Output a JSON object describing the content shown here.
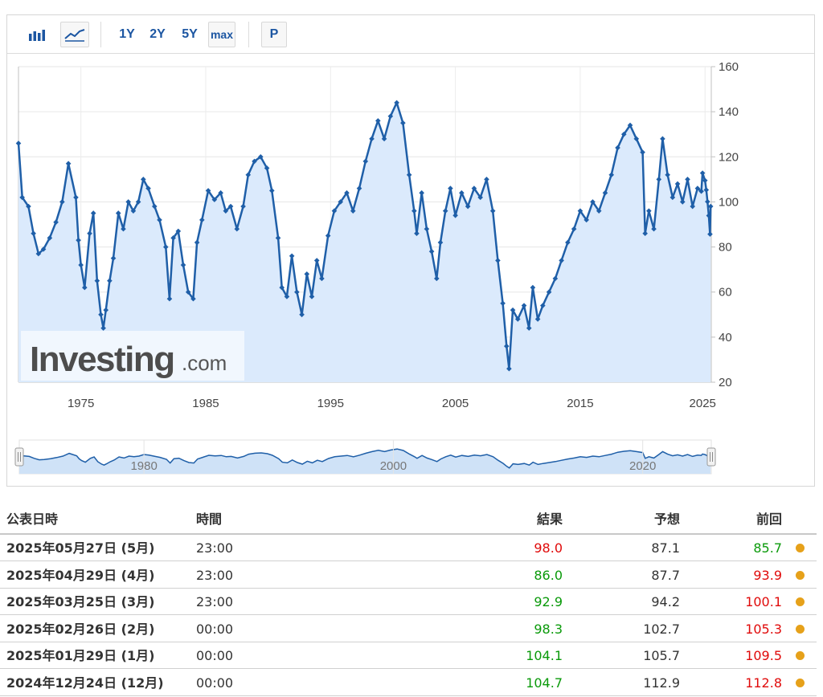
{
  "toolbar": {
    "range_1y": "1Y",
    "range_2y": "2Y",
    "range_5y": "5Y",
    "range_max": "max",
    "p_button": "P"
  },
  "watermark": {
    "brand": "Investing",
    "suffix": ".com"
  },
  "colors": {
    "line": "#1f5fa8",
    "area": "#dbeafc",
    "up": "#e00a0a",
    "down": "#0a9a0a",
    "dot": "#e6a11a"
  },
  "chart_data": {
    "type": "area",
    "title": "",
    "xlabel": "",
    "ylabel": "",
    "xlim": [
      1970.0,
      2025.5
    ],
    "ylim": [
      20,
      160
    ],
    "y_ticks": [
      "20",
      "40",
      "60",
      "80",
      "100",
      "120",
      "140",
      "160"
    ],
    "x_ticks": [
      "1975",
      "1985",
      "1995",
      "2005",
      "2015",
      "2025"
    ],
    "navigator_ticks": [
      "1980",
      "2000",
      "2020"
    ],
    "grid": true,
    "y_axis_side": "right",
    "series": [
      {
        "values": [
          [
            1970.0,
            126
          ],
          [
            1970.3,
            102
          ],
          [
            1970.8,
            98
          ],
          [
            1971.2,
            86
          ],
          [
            1971.6,
            77
          ],
          [
            1972.0,
            79
          ],
          [
            1972.5,
            84
          ],
          [
            1973.0,
            91
          ],
          [
            1973.5,
            100
          ],
          [
            1974.0,
            117
          ],
          [
            1974.6,
            102
          ],
          [
            1974.8,
            83
          ],
          [
            1975.0,
            72
          ],
          [
            1975.3,
            62
          ],
          [
            1975.7,
            86
          ],
          [
            1976.0,
            95
          ],
          [
            1976.3,
            65
          ],
          [
            1976.6,
            50
          ],
          [
            1976.8,
            44
          ],
          [
            1977.0,
            52
          ],
          [
            1977.3,
            65
          ],
          [
            1977.6,
            75
          ],
          [
            1978.0,
            95
          ],
          [
            1978.4,
            88
          ],
          [
            1978.8,
            100
          ],
          [
            1979.2,
            96
          ],
          [
            1979.6,
            100
          ],
          [
            1980.0,
            110
          ],
          [
            1980.4,
            106
          ],
          [
            1980.9,
            98
          ],
          [
            1981.3,
            92
          ],
          [
            1981.8,
            80
          ],
          [
            1982.1,
            57
          ],
          [
            1982.4,
            84
          ],
          [
            1982.8,
            87
          ],
          [
            1983.2,
            72
          ],
          [
            1983.6,
            60
          ],
          [
            1984.0,
            57
          ],
          [
            1984.3,
            82
          ],
          [
            1984.7,
            92
          ],
          [
            1985.2,
            105
          ],
          [
            1985.7,
            101
          ],
          [
            1986.2,
            104
          ],
          [
            1986.6,
            96
          ],
          [
            1987.0,
            98
          ],
          [
            1987.5,
            88
          ],
          [
            1988.0,
            98
          ],
          [
            1988.4,
            112
          ],
          [
            1988.9,
            118
          ],
          [
            1989.4,
            120
          ],
          [
            1989.9,
            115
          ],
          [
            1990.3,
            105
          ],
          [
            1990.8,
            84
          ],
          [
            1991.1,
            62
          ],
          [
            1991.5,
            58
          ],
          [
            1991.9,
            76
          ],
          [
            1992.3,
            60
          ],
          [
            1992.7,
            50
          ],
          [
            1993.1,
            68
          ],
          [
            1993.5,
            58
          ],
          [
            1993.9,
            74
          ],
          [
            1994.3,
            66
          ],
          [
            1994.8,
            85
          ],
          [
            1995.3,
            96
          ],
          [
            1995.8,
            100
          ],
          [
            1996.3,
            104
          ],
          [
            1996.8,
            96
          ],
          [
            1997.3,
            106
          ],
          [
            1997.8,
            118
          ],
          [
            1998.3,
            128
          ],
          [
            1998.8,
            136
          ],
          [
            1999.3,
            128
          ],
          [
            1999.8,
            138
          ],
          [
            2000.3,
            144
          ],
          [
            2000.8,
            135
          ],
          [
            2001.3,
            112
          ],
          [
            2001.7,
            96
          ],
          [
            2001.9,
            86
          ],
          [
            2002.3,
            104
          ],
          [
            2002.7,
            88
          ],
          [
            2003.1,
            78
          ],
          [
            2003.5,
            66
          ],
          [
            2003.8,
            82
          ],
          [
            2004.2,
            96
          ],
          [
            2004.6,
            106
          ],
          [
            2005.0,
            94
          ],
          [
            2005.5,
            104
          ],
          [
            2006.0,
            98
          ],
          [
            2006.5,
            106
          ],
          [
            2007.0,
            102
          ],
          [
            2007.5,
            110
          ],
          [
            2008.0,
            96
          ],
          [
            2008.4,
            74
          ],
          [
            2008.8,
            55
          ],
          [
            2009.1,
            36
          ],
          [
            2009.3,
            26
          ],
          [
            2009.6,
            52
          ],
          [
            2010.0,
            48
          ],
          [
            2010.5,
            54
          ],
          [
            2010.9,
            44
          ],
          [
            2011.2,
            62
          ],
          [
            2011.6,
            48
          ],
          [
            2012.0,
            54
          ],
          [
            2012.5,
            60
          ],
          [
            2013.0,
            66
          ],
          [
            2013.5,
            74
          ],
          [
            2014.0,
            82
          ],
          [
            2014.5,
            88
          ],
          [
            2015.0,
            96
          ],
          [
            2015.5,
            92
          ],
          [
            2016.0,
            100
          ],
          [
            2016.5,
            96
          ],
          [
            2017.0,
            104
          ],
          [
            2017.5,
            112
          ],
          [
            2018.0,
            124
          ],
          [
            2018.5,
            130
          ],
          [
            2019.0,
            134
          ],
          [
            2019.5,
            128
          ],
          [
            2020.0,
            122
          ],
          [
            2020.2,
            86
          ],
          [
            2020.5,
            96
          ],
          [
            2020.9,
            88
          ],
          [
            2021.3,
            110
          ],
          [
            2021.6,
            128
          ],
          [
            2022.0,
            112
          ],
          [
            2022.4,
            102
          ],
          [
            2022.8,
            108
          ],
          [
            2023.2,
            100
          ],
          [
            2023.6,
            110
          ],
          [
            2024.0,
            98
          ],
          [
            2024.4,
            106
          ],
          [
            2024.7,
            104.7
          ],
          [
            2024.8,
            112.8
          ],
          [
            2025.0,
            109.5
          ],
          [
            2025.1,
            105.3
          ],
          [
            2025.2,
            100.1
          ],
          [
            2025.3,
            93.9
          ],
          [
            2025.4,
            85.7
          ],
          [
            2025.45,
            98.0
          ]
        ]
      }
    ]
  },
  "table": {
    "headers": {
      "date": "公表日時",
      "time": "時間",
      "actual": "結果",
      "forecast": "予想",
      "previous": "前回"
    },
    "rows": [
      {
        "date": "2025年05月27日 (5月)",
        "time": "23:00",
        "actual": "98.0",
        "actual_dir": "up",
        "forecast": "87.1",
        "previous": "85.7",
        "previous_dir": "down"
      },
      {
        "date": "2025年04月29日 (4月)",
        "time": "23:00",
        "actual": "86.0",
        "actual_dir": "down",
        "forecast": "87.7",
        "previous": "93.9",
        "previous_dir": "up"
      },
      {
        "date": "2025年03月25日 (3月)",
        "time": "23:00",
        "actual": "92.9",
        "actual_dir": "down",
        "forecast": "94.2",
        "previous": "100.1",
        "previous_dir": "up"
      },
      {
        "date": "2025年02月26日 (2月)",
        "time": "00:00",
        "actual": "98.3",
        "actual_dir": "down",
        "forecast": "102.7",
        "previous": "105.3",
        "previous_dir": "up"
      },
      {
        "date": "2025年01月29日 (1月)",
        "time": "00:00",
        "actual": "104.1",
        "actual_dir": "down",
        "forecast": "105.7",
        "previous": "109.5",
        "previous_dir": "up"
      },
      {
        "date": "2024年12月24日 (12月)",
        "time": "00:00",
        "actual": "104.7",
        "actual_dir": "down",
        "forecast": "112.9",
        "previous": "112.8",
        "previous_dir": "up"
      }
    ]
  }
}
